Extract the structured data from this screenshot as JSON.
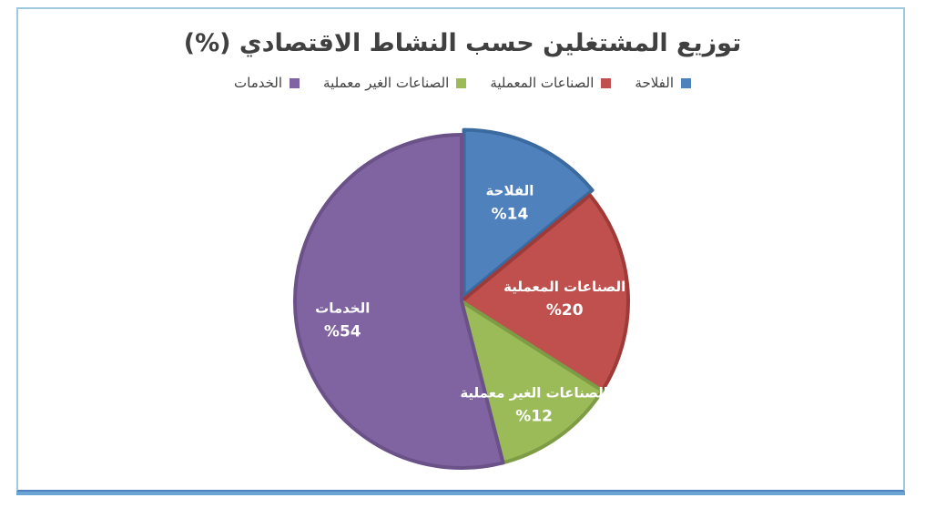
{
  "chart_data": {
    "type": "pie",
    "title": "توزيع المشتغلين حسب النشاط الاقتصادي (%)",
    "legend_position": "top",
    "categories": [
      "الفلاحة",
      "الصناعات المعملية",
      "الصناعات الغير معملية",
      "الخدمات"
    ],
    "values": [
      14,
      20,
      12,
      54
    ],
    "value_labels": [
      "%14",
      "%20",
      "%12",
      "%54"
    ],
    "colors": [
      "#4f81bd",
      "#c0504d",
      "#9bbb59",
      "#8064a2"
    ],
    "border_colors": [
      "#3b6aa0",
      "#9e3b38",
      "#7e9c45",
      "#6a5188"
    ]
  }
}
